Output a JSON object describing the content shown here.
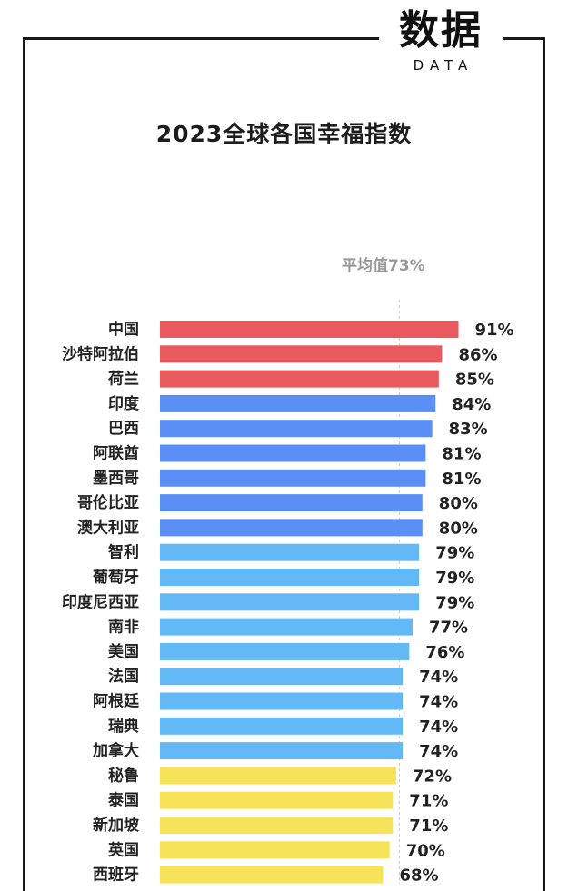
{
  "brand": {
    "name": "数据",
    "sub": "DATA"
  },
  "chart_data": {
    "type": "bar",
    "orientation": "horizontal",
    "title": "2023全球各国幸福指数",
    "average_label": "平均值73%",
    "average_value": 73,
    "unit": "%",
    "xlim": [
      0,
      100
    ],
    "colors": {
      "red": "#e95a5e",
      "blue": "#5b8ff5",
      "lightblue": "#62b9f6",
      "yellow": "#f7e35a"
    },
    "categories": [
      "中国",
      "沙特阿拉伯",
      "荷兰",
      "印度",
      "巴西",
      "阿联酋",
      "墨西哥",
      "哥伦比亚",
      "澳大利亚",
      "智利",
      "葡萄牙",
      "印度尼西亚",
      "南非",
      "美国",
      "法国",
      "阿根廷",
      "瑞典",
      "加拿大",
      "秘鲁",
      "泰国",
      "新加坡",
      "英国",
      "西班牙"
    ],
    "values": [
      91,
      86,
      85,
      84,
      83,
      81,
      81,
      80,
      80,
      79,
      79,
      79,
      77,
      76,
      74,
      74,
      74,
      74,
      72,
      71,
      71,
      70,
      68
    ],
    "value_labels": [
      "91%",
      "86%",
      "85%",
      "84%",
      "83%",
      "81%",
      "81%",
      "80%",
      "80%",
      "79%",
      "79%",
      "79%",
      "77%",
      "76%",
      "74%",
      "74%",
      "74%",
      "74%",
      "72%",
      "71%",
      "71%",
      "70%",
      "68%"
    ],
    "bar_colors": [
      "red",
      "red",
      "red",
      "blue",
      "blue",
      "blue",
      "blue",
      "blue",
      "blue",
      "lightblue",
      "lightblue",
      "lightblue",
      "lightblue",
      "lightblue",
      "lightblue",
      "lightblue",
      "lightblue",
      "lightblue",
      "yellow",
      "yellow",
      "yellow",
      "yellow",
      "yellow"
    ]
  }
}
